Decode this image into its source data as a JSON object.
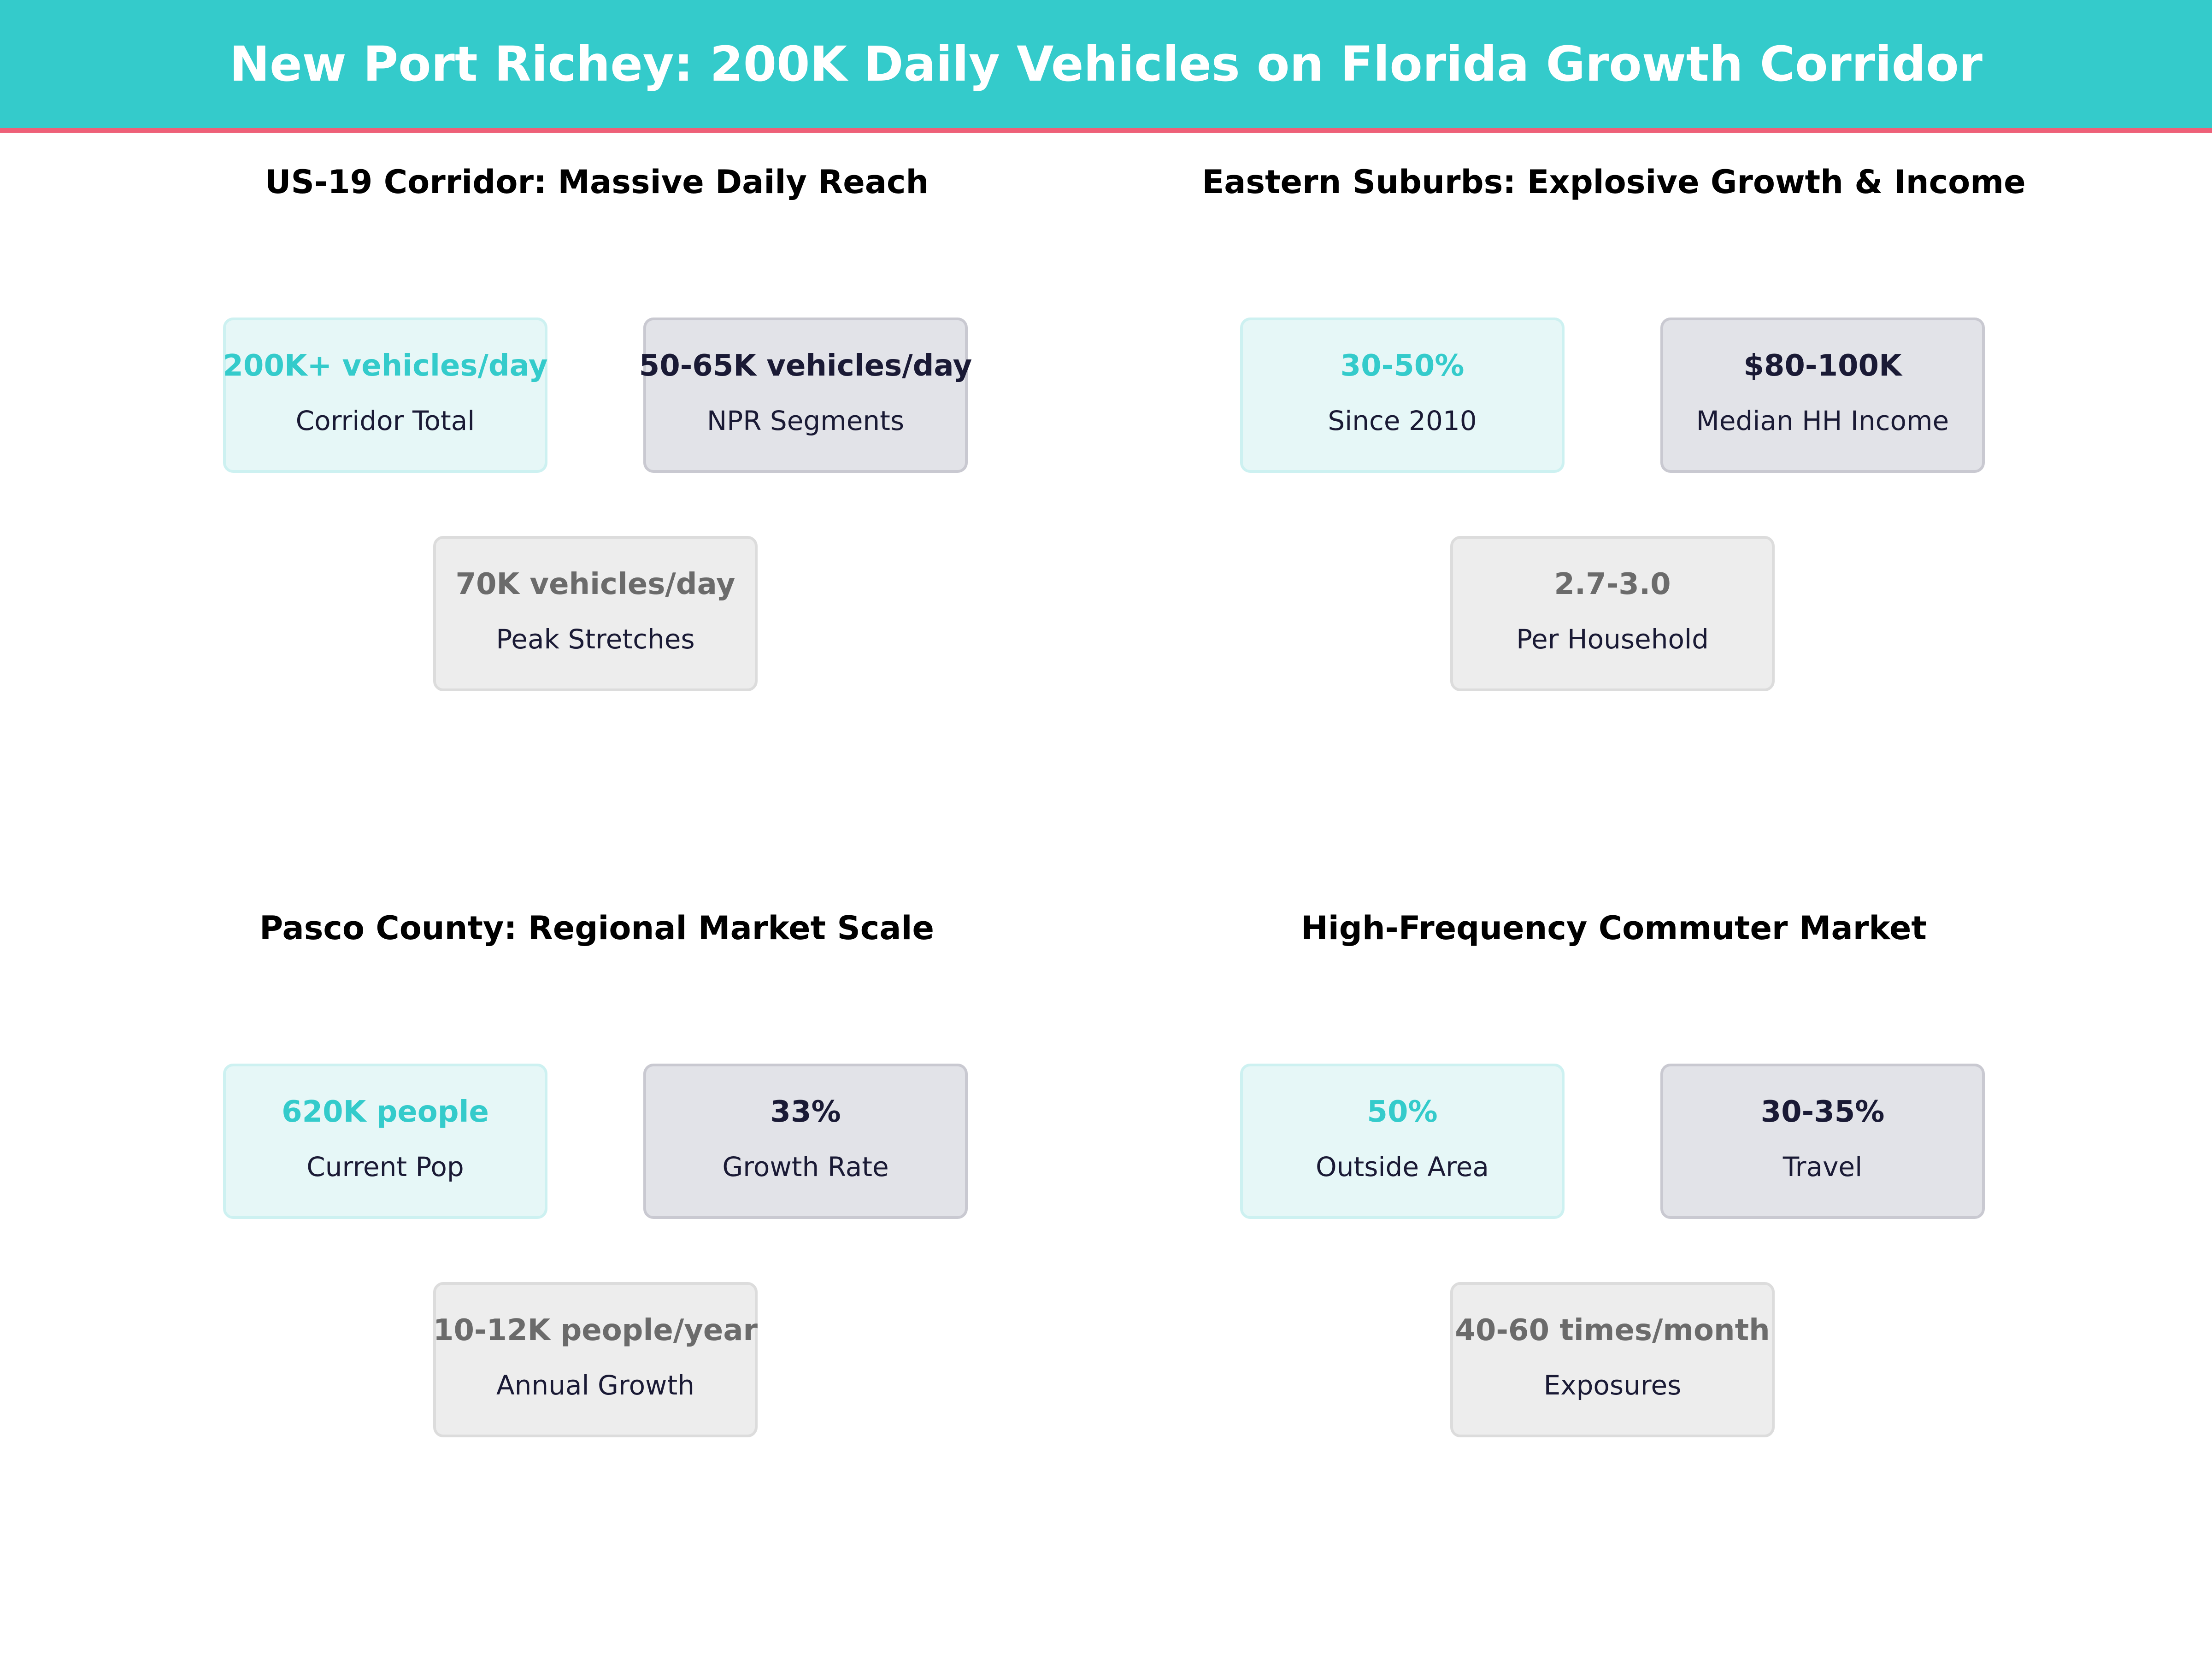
{
  "title": "New Port Richey: 200K Daily Vehicles on Florida Growth Corridor",
  "colors": {
    "header": "#34CBCB",
    "accent_line": "#EE6078",
    "primary": "#34CBCB",
    "dark": "#1a1a35",
    "muted": "#6b6b6b"
  },
  "panels": [
    {
      "title": "US-19 Corridor: Massive Daily Reach",
      "cards": [
        {
          "value": "200K+ vehicles/day",
          "label": "Corridor Total"
        },
        {
          "value": "50-65K vehicles/day",
          "label": "NPR Segments"
        },
        {
          "value": "70K vehicles/day",
          "label": "Peak Stretches"
        }
      ]
    },
    {
      "title": "Eastern Suburbs: Explosive Growth & Income",
      "cards": [
        {
          "value": "30-50%",
          "label": "Since 2010"
        },
        {
          "value": "$80-100K",
          "label": "Median HH Income"
        },
        {
          "value": "2.7-3.0",
          "label": "Per Household"
        }
      ]
    },
    {
      "title": "Pasco County: Regional Market Scale",
      "cards": [
        {
          "value": "620K people",
          "label": "Current Pop"
        },
        {
          "value": "33%",
          "label": "Growth Rate"
        },
        {
          "value": "10-12K people/year",
          "label": "Annual Growth"
        }
      ]
    },
    {
      "title": "High-Frequency Commuter Market",
      "cards": [
        {
          "value": "50%",
          "label": "Outside Area"
        },
        {
          "value": "30-35%",
          "label": "Travel"
        },
        {
          "value": "40-60 times/month",
          "label": "Exposures"
        }
      ]
    }
  ]
}
